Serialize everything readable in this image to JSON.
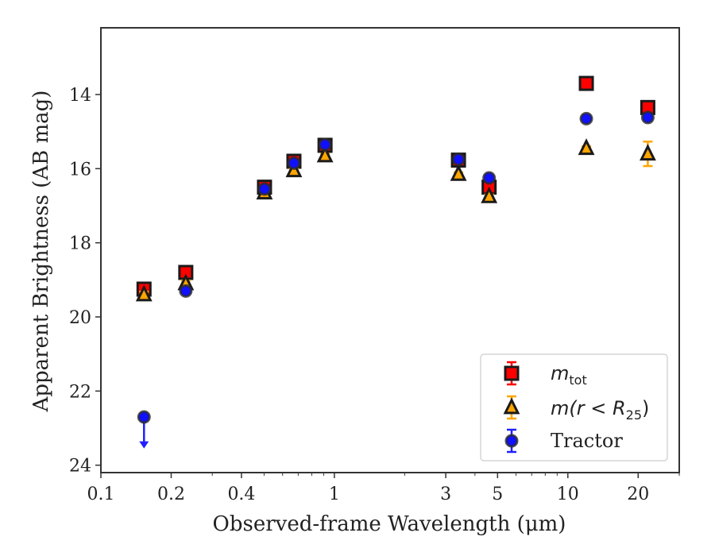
{
  "chart_data": {
    "type": "scatter",
    "title": "",
    "xlabel": "Observed-frame Wavelength (μm)",
    "ylabel": "Apparent Brightness (AB mag)",
    "x_scale": "log",
    "xlim": [
      0.1,
      30
    ],
    "ylim": [
      24.2,
      12.2
    ],
    "y_inverted": true,
    "x_ticks": [
      0.1,
      0.2,
      0.4,
      1,
      3,
      5,
      10,
      20
    ],
    "x_tick_labels": [
      "0.1",
      "0.2",
      "0.4",
      "1",
      "3",
      "5",
      "10",
      "20"
    ],
    "y_ticks": [
      14,
      16,
      18,
      20,
      22,
      24
    ],
    "y_tick_labels": [
      "14",
      "16",
      "18",
      "20",
      "22",
      "24"
    ],
    "grid": false,
    "legend_position": "bottom-right",
    "series": [
      {
        "name": "m_tot",
        "legend_label": {
          "base": "m",
          "sub": "tot"
        },
        "marker": "square",
        "face_color": "#ff0000",
        "edge_color": "#1a1a1a",
        "error_color": "#ff0000",
        "points": [
          {
            "x": 0.153,
            "y": 19.25,
            "err": 0.08
          },
          {
            "x": 0.231,
            "y": 18.8,
            "err": 0.08
          },
          {
            "x": 0.502,
            "y": 16.5,
            "err": 0.05
          },
          {
            "x": 0.671,
            "y": 15.8,
            "err": 0.05
          },
          {
            "x": 0.912,
            "y": 15.37,
            "err": 0.05
          },
          {
            "x": 3.4,
            "y": 15.77,
            "err": 0.05
          },
          {
            "x": 4.6,
            "y": 16.5,
            "err": 0.05
          },
          {
            "x": 12.0,
            "y": 13.7,
            "err": 0.05
          },
          {
            "x": 22.0,
            "y": 14.35,
            "err": 0.08
          }
        ]
      },
      {
        "name": "m(r < R_25)",
        "legend_label": {
          "base": "m(r < R",
          "sub": "25",
          "suffix": ")"
        },
        "marker": "triangle",
        "face_color": "#ffa500",
        "edge_color": "#1a1a1a",
        "error_color": "#ffa500",
        "points": [
          {
            "x": 0.153,
            "y": 19.4,
            "err": 0.08
          },
          {
            "x": 0.231,
            "y": 19.1,
            "err": 0.08
          },
          {
            "x": 0.502,
            "y": 16.65,
            "err": 0.05
          },
          {
            "x": 0.671,
            "y": 16.05,
            "err": 0.05
          },
          {
            "x": 0.912,
            "y": 15.65,
            "err": 0.05
          },
          {
            "x": 3.4,
            "y": 16.15,
            "err": 0.05
          },
          {
            "x": 4.6,
            "y": 16.75,
            "err": 0.05
          },
          {
            "x": 12.0,
            "y": 15.45,
            "err": 0.05
          },
          {
            "x": 22.0,
            "y": 15.6,
            "err": 0.33
          }
        ]
      },
      {
        "name": "Tractor",
        "marker": "circle",
        "face_color": "#1010ff",
        "edge_color": "#2a2a2a",
        "error_color": "#2020ff",
        "points": [
          {
            "x": 0.153,
            "y": 22.7,
            "upper_limit": true,
            "arrow_to": 23.55
          },
          {
            "x": 0.231,
            "y": 19.3,
            "err": 0.05
          },
          {
            "x": 0.502,
            "y": 16.55,
            "err": 0.05
          },
          {
            "x": 0.671,
            "y": 15.85,
            "err": 0.05
          },
          {
            "x": 0.912,
            "y": 15.35,
            "err": 0.05
          },
          {
            "x": 3.4,
            "y": 15.75,
            "err": 0.05
          },
          {
            "x": 4.6,
            "y": 16.25,
            "err": 0.05
          },
          {
            "x": 12.0,
            "y": 14.65,
            "err": 0.05
          },
          {
            "x": 22.0,
            "y": 14.62,
            "err": 0.05
          }
        ]
      }
    ]
  }
}
